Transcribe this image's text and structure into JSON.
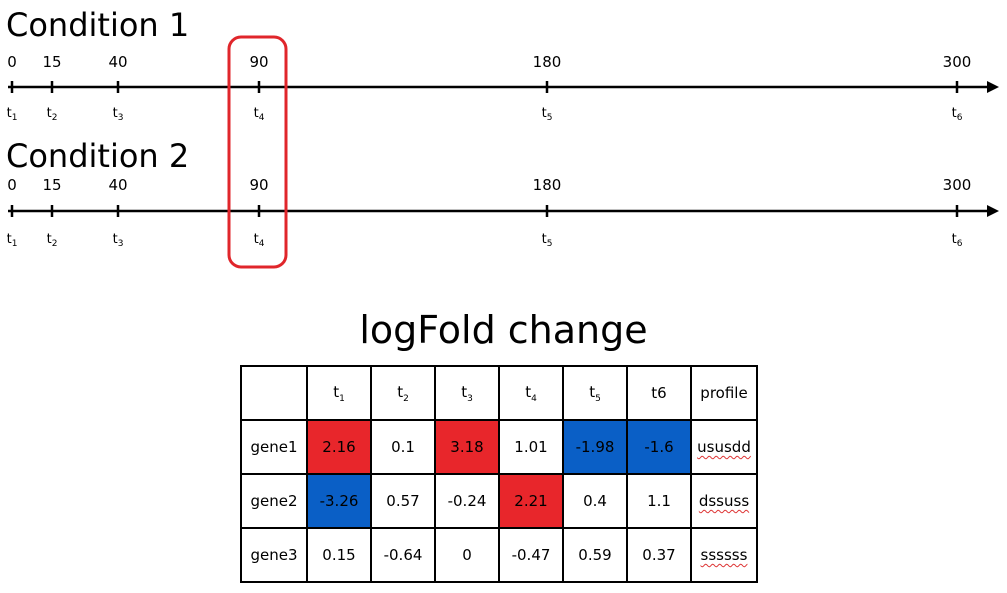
{
  "colors": {
    "highlight_box": "#e0262b",
    "up_cell": "#e8262b",
    "down_cell": "#0a5fc6",
    "axis": "#000000"
  },
  "conditions": [
    {
      "title": "Condition 1",
      "ticks": [
        {
          "value": "0",
          "t": "t",
          "sub": "1"
        },
        {
          "value": "15",
          "t": "t",
          "sub": "2"
        },
        {
          "value": "40",
          "t": "t",
          "sub": "3"
        },
        {
          "value": "90",
          "t": "t",
          "sub": "4"
        },
        {
          "value": "180",
          "t": "t",
          "sub": "5"
        },
        {
          "value": "300",
          "t": "t",
          "sub": "6"
        }
      ]
    },
    {
      "title": "Condition 2",
      "ticks": [
        {
          "value": "0",
          "t": "t",
          "sub": "1"
        },
        {
          "value": "15",
          "t": "t",
          "sub": "2"
        },
        {
          "value": "40",
          "t": "t",
          "sub": "3"
        },
        {
          "value": "90",
          "t": "t",
          "sub": "4"
        },
        {
          "value": "180",
          "t": "t",
          "sub": "5"
        },
        {
          "value": "300",
          "t": "t",
          "sub": "6"
        }
      ]
    }
  ],
  "highlighted_time": "90",
  "table": {
    "title": "logFold change",
    "headers": [
      {
        "t": "t",
        "sub": "1"
      },
      {
        "t": "t",
        "sub": "2"
      },
      {
        "t": "t",
        "sub": "3"
      },
      {
        "t": "t",
        "sub": "4"
      },
      {
        "t": "t",
        "sub": "5"
      },
      {
        "t": "t6",
        "sub": ""
      },
      {
        "t": "profile",
        "sub": ""
      }
    ],
    "rows": [
      {
        "gene": "gene1",
        "values": [
          "2.16",
          "0.1",
          "3.18",
          "1.01",
          "-1.98",
          "-1.6"
        ],
        "status": [
          "up",
          "none",
          "up",
          "none",
          "down",
          "down"
        ],
        "profile": "ususdd"
      },
      {
        "gene": "gene2",
        "values": [
          "-3.26",
          "0.57",
          "-0.24",
          "2.21",
          "0.4",
          "1.1"
        ],
        "status": [
          "down",
          "none",
          "none",
          "up",
          "none",
          "none"
        ],
        "profile": "dssuss"
      },
      {
        "gene": "gene3",
        "values": [
          "0.15",
          "-0.64",
          "0",
          "-0.47",
          "0.59",
          "0.37"
        ],
        "status": [
          "none",
          "none",
          "none",
          "none",
          "none",
          "none"
        ],
        "profile": "ssssss"
      }
    ]
  }
}
